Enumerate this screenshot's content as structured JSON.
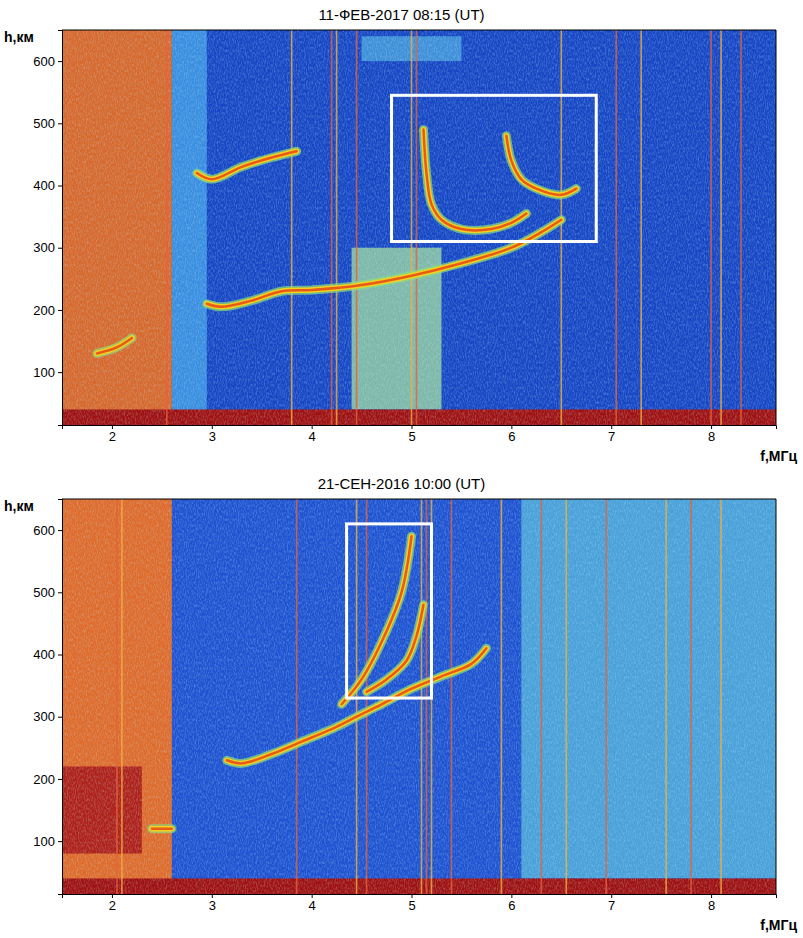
{
  "chart_data": [
    {
      "type": "line",
      "title": "11-ФЕВ-2017 08:15 (UT)",
      "xlabel": "f,МГц",
      "ylabel": "h,км",
      "xlim": [
        1.5,
        8.65
      ],
      "ylim": [
        15,
        650
      ],
      "xticks": [
        2,
        3,
        4,
        5,
        6,
        7,
        8
      ],
      "yticks": [
        100,
        200,
        300,
        400,
        500,
        600
      ],
      "grid": false,
      "noise_regions": [
        {
          "f": [
            1.5,
            8.65
          ],
          "h": [
            15,
            650
          ],
          "color": "#1746c4"
        },
        {
          "f": [
            1.5,
            2.6
          ],
          "h": [
            15,
            650
          ],
          "color": "#d8682c"
        },
        {
          "f": [
            2.6,
            2.95
          ],
          "h": [
            15,
            650
          ],
          "color": "#3a8ee0"
        },
        {
          "f": [
            4.4,
            5.3
          ],
          "h": [
            40,
            300
          ],
          "color": "#7fb8a8"
        },
        {
          "f": [
            4.5,
            5.5
          ],
          "h": [
            600,
            640
          ],
          "color": "#3f8fd8"
        },
        {
          "f": [
            1.5,
            8.65
          ],
          "h": [
            15,
            40
          ],
          "color": "#a01010"
        }
      ],
      "interference_f": [
        2.55,
        3.8,
        4.2,
        4.25,
        4.45,
        5.0,
        5.05,
        6.5,
        7.05,
        7.3,
        8.0,
        8.1,
        8.3
      ],
      "boxes": [
        {
          "f": [
            4.8,
            6.85
          ],
          "h": [
            310,
            545
          ]
        }
      ],
      "series": [
        {
          "x": [
            2.95,
            3.1,
            3.4,
            3.7,
            4.0,
            4.5,
            5.0,
            5.5,
            6.0,
            6.3,
            6.5
          ],
          "values": [
            210,
            205,
            215,
            230,
            232,
            240,
            255,
            275,
            300,
            325,
            345
          ],
          "color": "#e85a18"
        },
        {
          "x": [
            2.85,
            3.0,
            3.3,
            3.6,
            3.85
          ],
          "values": [
            420,
            410,
            430,
            445,
            455
          ],
          "color": "#e85a18"
        },
        {
          "x": [
            1.85,
            2.05,
            2.2
          ],
          "values": [
            130,
            140,
            155
          ],
          "color": "#e85a18"
        },
        {
          "x": [
            5.12,
            5.15,
            5.2,
            5.3,
            5.5,
            5.8,
            6.0,
            6.15
          ],
          "values": [
            490,
            420,
            370,
            345,
            330,
            330,
            340,
            355
          ],
          "color": "#e85a18"
        },
        {
          "x": [
            5.95,
            6.0,
            6.1,
            6.25,
            6.5,
            6.65
          ],
          "values": [
            480,
            440,
            410,
            395,
            385,
            395
          ],
          "color": "#e85a18"
        }
      ]
    },
    {
      "type": "line",
      "title": "21-СЕН-2016 10:00 (UT)",
      "xlabel": "f,МГц",
      "ylabel": "h,км",
      "xlim": [
        1.5,
        8.65
      ],
      "ylim": [
        15,
        650
      ],
      "xticks": [
        2,
        3,
        4,
        5,
        6,
        7,
        8
      ],
      "yticks": [
        100,
        200,
        300,
        400,
        500,
        600
      ],
      "grid": false,
      "noise_regions": [
        {
          "f": [
            1.5,
            8.65
          ],
          "h": [
            15,
            650
          ],
          "color": "#1f52d0"
        },
        {
          "f": [
            1.5,
            2.6
          ],
          "h": [
            15,
            650
          ],
          "color": "#e06a2a"
        },
        {
          "f": [
            1.5,
            2.3
          ],
          "h": [
            80,
            220
          ],
          "color": "#b02018"
        },
        {
          "f": [
            6.1,
            8.65
          ],
          "h": [
            40,
            650
          ],
          "color": "#4aa0d8"
        },
        {
          "f": [
            1.5,
            8.65
          ],
          "h": [
            15,
            40
          ],
          "color": "#a01010"
        }
      ],
      "interference_f": [
        2.05,
        2.1,
        3.85,
        4.45,
        4.55,
        5.1,
        5.15,
        5.2,
        5.4,
        5.9,
        6.3,
        6.55,
        6.95,
        7.55,
        7.8,
        8.1
      ],
      "boxes": [
        {
          "f": [
            4.35,
            5.2
          ],
          "h": [
            330,
            610
          ]
        }
      ],
      "series": [
        {
          "x": [
            3.15,
            3.3,
            3.6,
            3.9,
            4.2,
            4.45,
            4.7,
            5.0,
            5.3,
            5.6,
            5.75
          ],
          "values": [
            230,
            225,
            240,
            260,
            280,
            300,
            320,
            345,
            365,
            385,
            410
          ],
          "color": "#e85a18"
        },
        {
          "x": [
            4.3,
            4.5,
            4.7,
            4.9,
            5.0
          ],
          "values": [
            320,
            360,
            420,
            500,
            590
          ],
          "color": "#e85a18"
        },
        {
          "x": [
            4.55,
            4.75,
            4.95,
            5.05,
            5.12
          ],
          "values": [
            340,
            360,
            390,
            430,
            480
          ],
          "color": "#e85a18"
        },
        {
          "x": [
            2.4,
            2.6
          ],
          "values": [
            120,
            120
          ],
          "color": "#e85a18"
        }
      ]
    }
  ]
}
